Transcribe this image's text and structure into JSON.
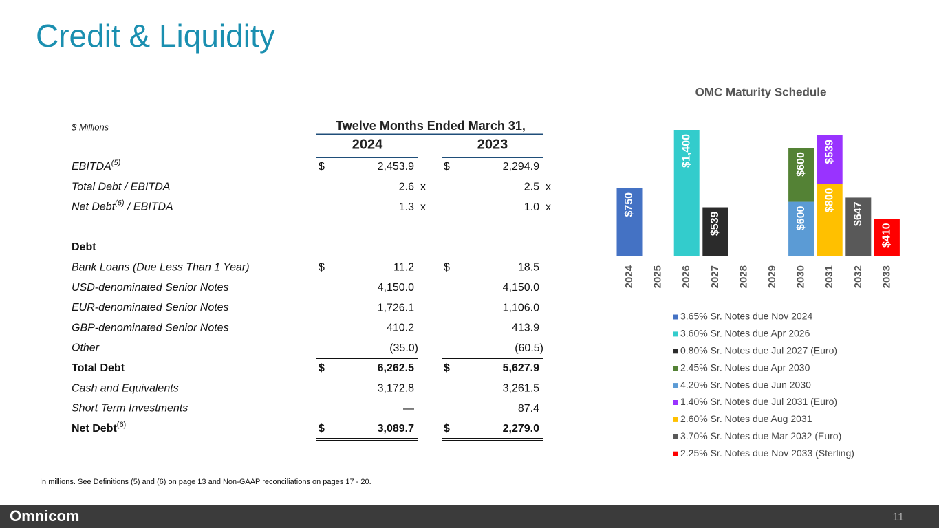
{
  "title": "Credit & Liquidity",
  "table": {
    "unit_label": "$ Millions",
    "period_header": "Twelve Months Ended March 31,",
    "columns": [
      "2024",
      "2023"
    ],
    "rows": [
      {
        "label": "EBITDA",
        "sup": "(5)",
        "cells": [
          {
            "prefix": "$",
            "text": "2,453.9"
          },
          {
            "prefix": "$",
            "text": "2,294.9"
          }
        ]
      },
      {
        "label": "Total Debt / EBITDA",
        "cells": [
          {
            "text": "2.6",
            "suffix": "x"
          },
          {
            "text": "2.5",
            "suffix": "x"
          }
        ]
      },
      {
        "label": "Net Debt",
        "sup": "(6)",
        "label_after": " / EBITDA",
        "cells": [
          {
            "text": "1.3",
            "suffix": "x"
          },
          {
            "text": "1.0",
            "suffix": "x"
          }
        ]
      },
      {
        "label": "Debt",
        "cells": []
      },
      {
        "label": "Bank Loans (Due Less Than 1 Year)",
        "cells": [
          {
            "prefix": "$",
            "text": "11.2"
          },
          {
            "prefix": "$",
            "text": "18.5"
          }
        ]
      },
      {
        "label": "USD-denominated Senior Notes",
        "cells": [
          {
            "text": "4,150.0"
          },
          {
            "text": "4,150.0"
          }
        ]
      },
      {
        "label": "EUR-denominated Senior Notes",
        "cells": [
          {
            "text": "1,726.1"
          },
          {
            "text": "1,106.0"
          }
        ]
      },
      {
        "label": "GBP-denominated Senior Notes",
        "cells": [
          {
            "text": "410.2"
          },
          {
            "text": "413.9"
          }
        ]
      },
      {
        "label": "Other",
        "cells": [
          {
            "text": "(35.0)"
          },
          {
            "text": "(60.5)"
          }
        ]
      },
      {
        "label": "Total Debt",
        "cells": [
          {
            "prefix": "$",
            "text": "6,262.5"
          },
          {
            "prefix": "$",
            "text": "5,627.9"
          }
        ]
      },
      {
        "label": "Cash and Equivalents",
        "cells": [
          {
            "text": "3,172.8"
          },
          {
            "text": "3,261.5"
          }
        ]
      },
      {
        "label": "Short Term Investments",
        "cells": [
          {
            "text": "—"
          },
          {
            "text": "87.4"
          }
        ]
      },
      {
        "label": "Net Debt",
        "sup": "(6)",
        "cells": [
          {
            "prefix": "$",
            "text": "3,089.7"
          },
          {
            "prefix": "$",
            "text": "2,279.0"
          }
        ]
      }
    ]
  },
  "chart_data": {
    "type": "stacked_bar",
    "title": "OMC Maturity Schedule",
    "categories": [
      "2024",
      "2025",
      "2026",
      "2027",
      "2028",
      "2029",
      "2030",
      "2031",
      "2032",
      "2033"
    ],
    "series": [
      {
        "name": "3.65% Sr. Notes due Nov 2024",
        "color": "#4472c4",
        "values": [
          750,
          null,
          null,
          null,
          null,
          null,
          null,
          null,
          null,
          null
        ],
        "value_labels": [
          "$750",
          null,
          null,
          null,
          null,
          null,
          null,
          null,
          null,
          null
        ]
      },
      {
        "name": "3.60% Sr. Notes due Apr 2026",
        "color": "#33cccc",
        "values": [
          null,
          null,
          1400,
          null,
          null,
          null,
          null,
          null,
          null,
          null
        ],
        "value_labels": [
          null,
          null,
          "$1,400",
          null,
          null,
          null,
          null,
          null,
          null,
          null
        ]
      },
      {
        "name": "0.80% Sr. Notes due Jul 2027 (Euro)",
        "color": "#2b2b2b",
        "values": [
          null,
          null,
          null,
          539,
          null,
          null,
          null,
          null,
          null,
          null
        ],
        "value_labels": [
          null,
          null,
          null,
          "$539",
          null,
          null,
          null,
          null,
          null,
          null
        ]
      },
      {
        "name": "2.45% Sr. Notes due Apr 2030",
        "color": "#548235",
        "values": [
          null,
          null,
          null,
          null,
          null,
          null,
          600,
          null,
          null,
          null
        ],
        "value_labels": [
          null,
          null,
          null,
          null,
          null,
          null,
          "$600",
          null,
          null,
          null
        ]
      },
      {
        "name": "4.20% Sr. Notes due Jun 2030",
        "color": "#5b9bd5",
        "values": [
          null,
          null,
          null,
          null,
          null,
          null,
          600,
          null,
          null,
          null
        ],
        "value_labels": [
          null,
          null,
          null,
          null,
          null,
          null,
          "$600",
          null,
          null,
          null
        ]
      },
      {
        "name": "1.40% Sr. Notes due Jul 2031 (Euro)",
        "color": "#9933ff",
        "values": [
          null,
          null,
          null,
          null,
          null,
          null,
          null,
          539,
          null,
          null
        ],
        "value_labels": [
          null,
          null,
          null,
          null,
          null,
          null,
          null,
          "$539",
          null,
          null
        ]
      },
      {
        "name": "2.60% Sr. Notes due Aug 2031",
        "color": "#ffc000",
        "values": [
          null,
          null,
          null,
          null,
          null,
          null,
          null,
          800,
          null,
          null
        ],
        "value_labels": [
          null,
          null,
          null,
          null,
          null,
          null,
          null,
          "$800",
          null,
          null
        ]
      },
      {
        "name": "3.70% Sr. Notes due Mar 2032 (Euro)",
        "color": "#595959",
        "values": [
          null,
          null,
          null,
          null,
          null,
          null,
          null,
          null,
          647,
          null
        ],
        "value_labels": [
          null,
          null,
          null,
          null,
          null,
          null,
          null,
          null,
          "$647",
          null
        ]
      },
      {
        "name": "2.25% Sr. Notes due Nov 2033 (Sterling)",
        "color": "#ff0000",
        "values": [
          null,
          null,
          null,
          null,
          null,
          null,
          null,
          null,
          null,
          410
        ],
        "value_labels": [
          null,
          null,
          null,
          null,
          null,
          null,
          null,
          null,
          null,
          "$410"
        ]
      }
    ]
  },
  "footnote": "In millions.  See Definitions (5) and (6) on page 13 and Non-GAAP reconciliations on pages 17 - 20.",
  "footer": {
    "brand": "Omnicom",
    "page": "11"
  }
}
